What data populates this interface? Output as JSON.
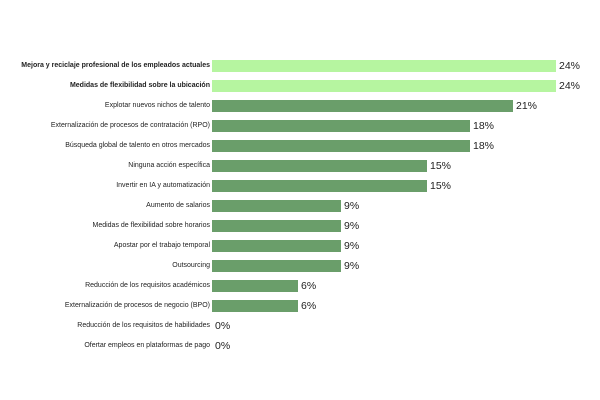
{
  "chart_data": {
    "type": "bar",
    "orientation": "horizontal",
    "categories": [
      "Mejora y reciclaje profesional de los empleados actuales",
      "Medidas de flexibilidad sobre la ubicación",
      "Explotar nuevos nichos de talento",
      "Externalización de procesos de contratación (RPO)",
      "Búsqueda global de talento en otros mercados",
      "Ninguna acción específica",
      "Invertir en IA y automatización",
      "Aumento de salarios",
      "Medidas de flexibilidad sobre horarios",
      "Apostar por el trabajo temporal",
      "Outsourcing",
      "Reducción de los requisitos académicos",
      "Externalización de procesos de negocio (BPO)",
      "Reducción de los requisitos de habilidades",
      "Ofertar empleos en plataformas de pago"
    ],
    "values": [
      24,
      24,
      21,
      18,
      18,
      15,
      15,
      9,
      9,
      9,
      9,
      6,
      6,
      0,
      0
    ],
    "value_labels": [
      "24%",
      "24%",
      "21%",
      "18%",
      "18%",
      "15%",
      "15%",
      "9%",
      "9%",
      "9%",
      "9%",
      "6%",
      "6%",
      "0%",
      "0%"
    ],
    "highlighted": [
      0,
      1
    ],
    "xlim": [
      0,
      24
    ],
    "grid": false,
    "legend": "none",
    "colors": {
      "highlight": "#b6f5a0",
      "default": "#6a9e6a"
    }
  }
}
